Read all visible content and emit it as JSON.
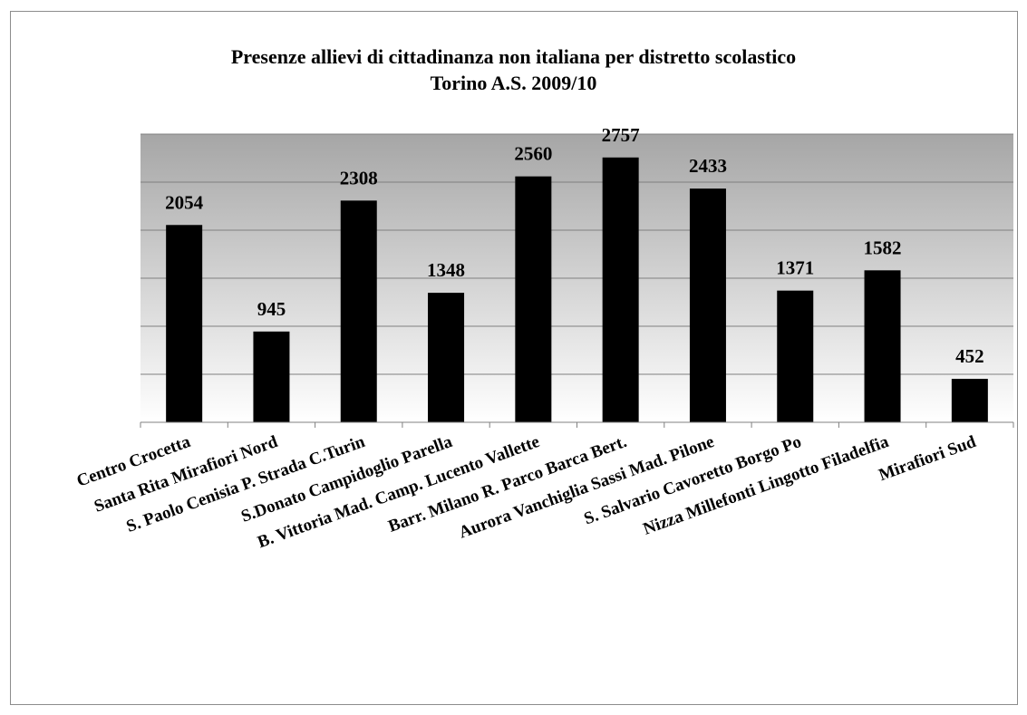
{
  "chart_data": {
    "type": "bar",
    "title": "Presenze allievi di cittadinanza non italiana per distretto scolastico",
    "subtitle": "Torino  A.S. 2009/10",
    "categories": [
      "Centro  Crocetta",
      "Santa Rita  Mirafiori Nord",
      "S. Paolo Cenisia P. Strada C.Turin",
      "S.Donato Campidoglio Parella",
      "B. Vittoria  Mad. Camp.  Lucento Vallette",
      "Barr. Milano R. Parco Barca  Bert.",
      "Aurora Vanchiglia Sassi  Mad. Pilone",
      "S. Salvario  Cavoretto Borgo Po",
      "Nizza Millefonti Lingotto  Filadelfia",
      "Mirafiori Sud"
    ],
    "values": [
      2054,
      945,
      2308,
      1348,
      2560,
      2757,
      2433,
      1371,
      1582,
      452
    ],
    "ylim": [
      0,
      3000
    ],
    "gridlines": [
      500,
      1000,
      1500,
      2000,
      2500,
      3000
    ],
    "grid": true,
    "legend": "none",
    "colors": {
      "bar": "#000000",
      "grid": "#808080",
      "background_top": "#a6a6a6",
      "background_bottom": "#ffffff"
    }
  }
}
